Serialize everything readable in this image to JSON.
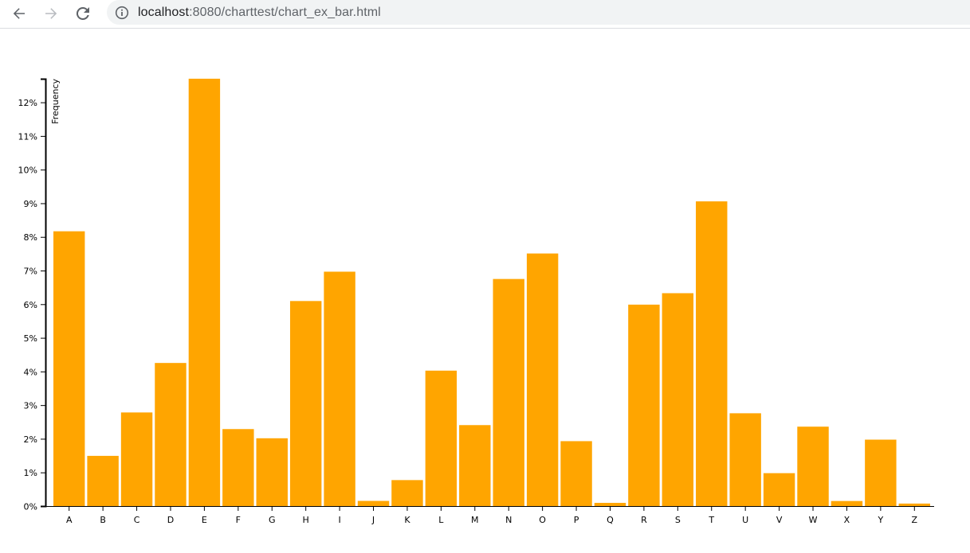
{
  "browser": {
    "url_host": "localhost",
    "url_rest": ":8080/charttest/chart_ex_bar.html",
    "back_icon": "arrow-left-icon",
    "forward_icon": "arrow-right-icon",
    "reload_icon": "reload-icon",
    "info_icon": "info-icon"
  },
  "chart_data": {
    "type": "bar",
    "title": "",
    "xlabel": "",
    "ylabel": "Frequency",
    "ylim": [
      0,
      0.127
    ],
    "yticks": [
      0,
      0.01,
      0.02,
      0.03,
      0.04,
      0.05,
      0.06,
      0.07,
      0.08,
      0.09,
      0.1,
      0.11,
      0.12
    ],
    "ytick_labels": [
      "0%",
      "1%",
      "2%",
      "3%",
      "4%",
      "5%",
      "6%",
      "7%",
      "8%",
      "9%",
      "10%",
      "11%",
      "12%"
    ],
    "categories": [
      "A",
      "B",
      "C",
      "D",
      "E",
      "F",
      "G",
      "H",
      "I",
      "J",
      "K",
      "L",
      "M",
      "N",
      "O",
      "P",
      "Q",
      "R",
      "S",
      "T",
      "U",
      "V",
      "W",
      "X",
      "Y",
      "Z"
    ],
    "values": [
      0.08167,
      0.01492,
      0.02782,
      0.04253,
      0.12702,
      0.02288,
      0.02015,
      0.06094,
      0.06966,
      0.00153,
      0.00772,
      0.04025,
      0.02406,
      0.06749,
      0.07507,
      0.01929,
      0.00095,
      0.05987,
      0.06327,
      0.09056,
      0.02758,
      0.00978,
      0.0236,
      0.0015,
      0.01974,
      0.00074
    ],
    "bar_color": "#ffa500",
    "axis_color": "#000000",
    "grid": false
  }
}
